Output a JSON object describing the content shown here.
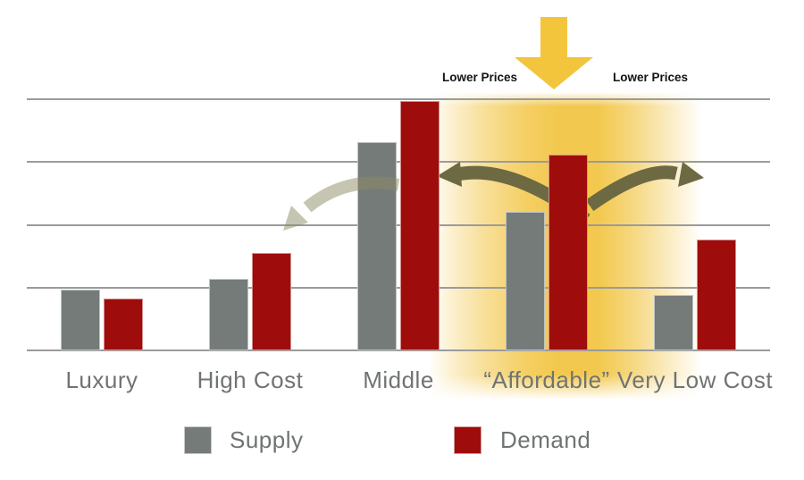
{
  "colors": {
    "supply": "#747B79",
    "demand": "#9E0C0B",
    "grid": "#9B9B9B",
    "label_text": "#6F7471",
    "annotation_text": "#141414",
    "highlight_yellow": "#F2C647",
    "down_arrow_yellow": "#F2C53D",
    "spillover_arrow": "#6D6942",
    "filter_arrow_light": "#8D8B63"
  },
  "annotations": {
    "lower_prices_left": "Lower Prices",
    "lower_prices_right": "Lower Prices"
  },
  "legend": {
    "items": [
      {
        "label": "Supply",
        "color_ref": "supply"
      },
      {
        "label": "Demand",
        "color_ref": "demand"
      }
    ]
  },
  "chart_data": {
    "type": "bar",
    "title": "",
    "xlabel": "",
    "ylabel": "",
    "categories": [
      "Luxury",
      "High Cost",
      "Middle",
      "“Affordable”",
      "Very Low Cost"
    ],
    "series": [
      {
        "name": "Supply",
        "color_ref": "supply",
        "values": [
          0.97,
          1.14,
          3.32,
          2.21,
          0.88
        ]
      },
      {
        "name": "Demand",
        "color_ref": "demand",
        "values": [
          0.83,
          1.55,
          3.97,
          3.12,
          1.77
        ]
      }
    ],
    "ylim": [
      0,
      4
    ],
    "gridline_step": 1,
    "grid": true,
    "y_tick_labels_visible": false,
    "legend_position": "bottom",
    "highlight": {
      "category": "“Affordable”",
      "style": "yellow glow band behind Affordable segment",
      "color_ref": "highlight_yellow"
    },
    "graphic_annotations": [
      {
        "type": "big-down-arrow",
        "color_ref": "down_arrow_yellow",
        "points_at": "“Affordable”"
      },
      {
        "type": "text",
        "text": "Lower Prices",
        "position": "above chart, left of down arrow"
      },
      {
        "type": "text",
        "text": "Lower Prices",
        "position": "above chart, right of down arrow"
      },
      {
        "type": "curved-arrow",
        "direction": "left",
        "from": "“Affordable” demand bar",
        "to": "Middle",
        "color_ref": "spillover_arrow"
      },
      {
        "type": "curved-arrow",
        "direction": "right",
        "from": "“Affordable” demand bar",
        "to": "Very Low Cost",
        "color_ref": "spillover_arrow"
      },
      {
        "type": "curved-arrow",
        "direction": "down-left",
        "from": "Middle bars",
        "to": "High Cost",
        "color_ref": "filter_arrow_light",
        "style": "faded"
      }
    ]
  }
}
